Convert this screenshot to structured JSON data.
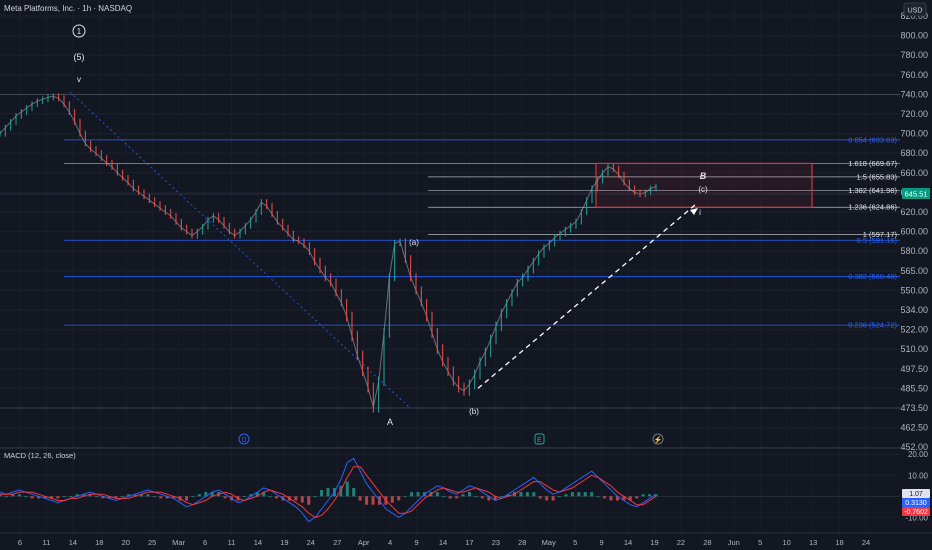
{
  "header": {
    "symbol_title": "Meta Platforms, Inc. · 1h · NASDAQ",
    "currency_button": "USD"
  },
  "price_axis": {
    "ticks": [
      "820.00",
      "800.00",
      "780.00",
      "760.00",
      "740.00",
      "720.00",
      "700.00",
      "680.00",
      "660.00",
      "640.00",
      "620.00",
      "600.00",
      "580.00",
      "565.00",
      "550.00",
      "534.00",
      "522.00",
      "510.00",
      "497.50",
      "485.50",
      "473.50",
      "462.50",
      "452.00"
    ],
    "current_price_badge": "645.51"
  },
  "time_axis": {
    "labels": [
      "6",
      "11",
      "14",
      "18",
      "20",
      "25",
      "Mar",
      "6",
      "11",
      "14",
      "19",
      "24",
      "27",
      "Apr",
      "4",
      "9",
      "14",
      "17",
      "23",
      "28",
      "May",
      "5",
      "9",
      "14",
      "19",
      "22",
      "28",
      "Jun",
      "5",
      "10",
      "13",
      "18",
      "24"
    ]
  },
  "fib_levels": [
    {
      "label": "0.854 (693.63)",
      "color": "#2962ff"
    },
    {
      "label": "1.618 (669.67)",
      "color": "#e0e3eb"
    },
    {
      "label": "1.5 (655.83)",
      "color": "#e0e3eb"
    },
    {
      "label": "1.382 (641.98)",
      "color": "#e0e3eb"
    },
    {
      "label": "1.236 (624.86)",
      "color": "#e0e3eb"
    },
    {
      "label": "1 (597.17)",
      "color": "#e0e3eb"
    },
    {
      "label": "0.5 (591.16)",
      "color": "#2962ff"
    },
    {
      "label": "0.382 (560.48)",
      "color": "#2962ff"
    },
    {
      "label": "0.236 (524.72)",
      "color": "#2962ff"
    }
  ],
  "wave_labels": {
    "circle_one": "1",
    "five": "(5)",
    "v": "v",
    "a": "A",
    "a_paren": "(a)",
    "b_paren": "(b)",
    "c_paren": "(c)",
    "b_italic": "B",
    "i": "i"
  },
  "event_markers": {
    "earnings": "D",
    "dividend": "E",
    "split": "⚡"
  },
  "macd": {
    "title": "MACD (12, 26, close)",
    "ticks": [
      "20.00",
      "10.00",
      "0.00",
      "-10.00"
    ],
    "badge_macd": "1.07",
    "badge_signal": "0.3130",
    "badge_hist": "-0.7602"
  },
  "chart_data": {
    "type": "line",
    "title": "Meta Platforms, Inc. · 1h · NASDAQ",
    "ylim": [
      452,
      830
    ],
    "ohlc_path_prices": [
      700,
      706,
      712,
      718,
      722,
      726,
      730,
      733,
      735,
      737,
      738,
      736,
      730,
      722,
      712,
      700,
      690,
      684,
      680,
      675,
      670,
      666,
      660,
      655,
      650,
      644,
      640,
      636,
      632,
      628,
      624,
      620,
      616,
      610,
      604,
      600,
      596,
      600,
      605,
      612,
      616,
      612,
      606,
      600,
      596,
      600,
      606,
      612,
      620,
      630,
      626,
      618,
      610,
      604,
      598,
      592,
      590,
      586,
      580,
      572,
      566,
      560,
      556,
      548,
      540,
      530,
      518,
      506,
      496,
      486,
      474,
      490,
      520,
      560,
      588,
      590,
      574,
      560,
      550,
      540,
      530,
      520,
      510,
      502,
      496,
      490,
      486,
      484,
      488,
      494,
      502,
      508,
      516,
      524,
      532,
      540,
      548,
      556,
      560,
      566,
      572,
      578,
      584,
      588,
      594,
      598,
      602,
      606,
      610,
      620,
      632,
      644,
      652,
      660,
      666,
      664,
      658,
      650,
      644,
      640,
      638,
      640,
      644,
      646
    ],
    "current_price": 645.51,
    "fib_values": {
      "0.854": 693.63,
      "1.618": 669.67,
      "1.5": 655.83,
      "1.382": 641.98,
      "1.236": 624.86,
      "1": 597.17,
      "0.5": 591.16,
      "0.382": 560.48,
      "0.236": 524.72
    },
    "box_range": [
      624.86,
      669.67
    ],
    "projection_from": 485.5,
    "projection_to": 626,
    "macd_ylim": [
      -16,
      22
    ],
    "macd_line": [
      2,
      1,
      2,
      3,
      2,
      1,
      0,
      -1,
      -2,
      -3,
      -2,
      -1,
      0,
      1,
      2,
      1,
      0,
      -1,
      -2,
      -1,
      0,
      1,
      2,
      3,
      2,
      1,
      0,
      -1,
      -3,
      -5,
      -4,
      -2,
      0,
      2,
      3,
      1,
      -1,
      -3,
      -2,
      0,
      2,
      4,
      3,
      1,
      -1,
      -3,
      -5,
      -8,
      -12,
      -10,
      -6,
      -2,
      2,
      8,
      16,
      18,
      12,
      6,
      2,
      -2,
      -6,
      -8,
      -10,
      -8,
      -5,
      -2,
      1,
      3,
      5,
      4,
      2,
      1,
      3,
      5,
      4,
      2,
      0,
      -2,
      -1,
      1,
      3,
      5,
      7,
      9,
      6,
      3,
      1,
      2,
      4,
      6,
      8,
      10,
      12,
      9,
      6,
      3,
      0,
      -2,
      -4,
      -5,
      -3,
      -1,
      1
    ],
    "macd_signal": [
      1,
      1,
      1,
      2,
      2,
      2,
      1,
      0,
      -1,
      -2,
      -2,
      -1,
      -1,
      0,
      1,
      1,
      1,
      0,
      -1,
      -1,
      -1,
      0,
      1,
      2,
      2,
      2,
      1,
      0,
      -1,
      -3,
      -4,
      -3,
      -2,
      0,
      1,
      2,
      1,
      -1,
      -2,
      -1,
      0,
      2,
      3,
      2,
      1,
      -1,
      -3,
      -5,
      -8,
      -10,
      -9,
      -6,
      -2,
      3,
      9,
      14,
      14,
      10,
      6,
      2,
      -2,
      -5,
      -8,
      -8,
      -7,
      -4,
      -1,
      1,
      3,
      4,
      3,
      2,
      2,
      3,
      4,
      3,
      2,
      0,
      -1,
      0,
      1,
      3,
      5,
      7,
      7,
      5,
      3,
      2,
      3,
      4,
      6,
      8,
      10,
      9,
      7,
      5,
      2,
      0,
      -2,
      -4,
      -4,
      -2,
      0
    ]
  }
}
